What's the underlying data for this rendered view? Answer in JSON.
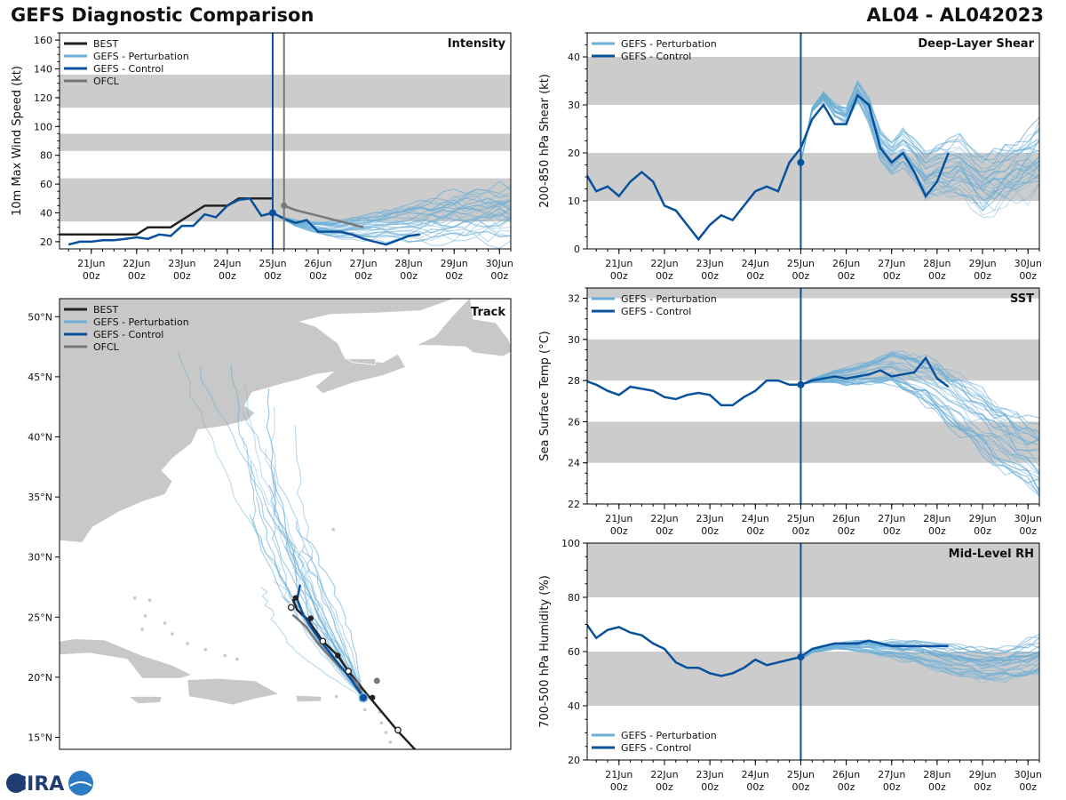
{
  "header": {
    "title": "GEFS Diagnostic Comparison",
    "storm_id": "AL04 - AL042023"
  },
  "logo": {
    "text": "CIRA"
  },
  "colors": {
    "best": "#222222",
    "perturbation": "#6baed6",
    "control": "#08519c",
    "ofcl": "#777777",
    "band": "#cccccc",
    "land": "#c8c8c8"
  },
  "time_axis": {
    "ticks": [
      {
        "day": 21,
        "label": "21Jun",
        "sub": "00z"
      },
      {
        "day": 22,
        "label": "22Jun",
        "sub": "00z"
      },
      {
        "day": 23,
        "label": "23Jun",
        "sub": "00z"
      },
      {
        "day": 24,
        "label": "24Jun",
        "sub": "00z"
      },
      {
        "day": 25,
        "label": "25Jun",
        "sub": "00z"
      },
      {
        "day": 26,
        "label": "26Jun",
        "sub": "00z"
      },
      {
        "day": 27,
        "label": "27Jun",
        "sub": "00z"
      },
      {
        "day": 28,
        "label": "28Jun",
        "sub": "00z"
      },
      {
        "day": 29,
        "label": "29Jun",
        "sub": "00z"
      },
      {
        "day": 30,
        "label": "30Jun",
        "sub": "00z"
      }
    ],
    "xlim": [
      20.3,
      30.25
    ],
    "init_day": 25.0
  },
  "chart_data": [
    {
      "id": "intensity",
      "type": "line",
      "title": "Intensity",
      "ylabel": "10m Max Wind Speed (kt)",
      "ylim": [
        15,
        165
      ],
      "yticks": [
        20,
        40,
        60,
        80,
        100,
        120,
        140,
        160
      ],
      "bands": [
        [
          34,
          64
        ],
        [
          83,
          95
        ],
        [
          113,
          136
        ]
      ],
      "legend": [
        "BEST",
        "GEFS - Perturbation",
        "GEFS - Control",
        "OFCL"
      ],
      "legend_types": [
        "best",
        "perturbation",
        "control",
        "ofcl"
      ],
      "vlines": [
        {
          "day": 25.0,
          "type": "control"
        },
        {
          "day": 25.25,
          "type": "ofcl"
        }
      ],
      "best": {
        "x": [
          20.25,
          20.5,
          20.75,
          21.0,
          21.25,
          21.5,
          21.75,
          22.0,
          22.25,
          22.5,
          22.75,
          23.0,
          23.25,
          23.5,
          23.75,
          24.0,
          24.25,
          24.5,
          24.75,
          25.0
        ],
        "y": [
          25,
          25,
          25,
          25,
          25,
          25,
          25,
          25,
          30,
          30,
          30,
          35,
          40,
          45,
          45,
          45,
          50,
          50,
          50,
          50
        ]
      },
      "control": {
        "x": [
          20.5,
          20.75,
          21.0,
          21.25,
          21.5,
          21.75,
          22.0,
          22.25,
          22.5,
          22.75,
          23.0,
          23.25,
          23.5,
          23.75,
          24.0,
          24.25,
          24.5,
          24.75,
          25.0,
          25.25,
          25.5,
          25.75,
          26.0,
          26.25,
          26.5,
          26.75,
          27.0,
          27.25,
          27.5,
          27.75,
          28.0,
          28.25
        ],
        "y": [
          18,
          20,
          20,
          21,
          21,
          22,
          23,
          22,
          25,
          24,
          31,
          31,
          39,
          37,
          45,
          49,
          50,
          38,
          40,
          36,
          33,
          35,
          27,
          27,
          27,
          25,
          22,
          20,
          18,
          21,
          24,
          25
        ]
      },
      "ofcl": {
        "x": [
          25.25,
          25.5,
          26.0,
          26.5,
          27.0
        ],
        "y": [
          45,
          42,
          38,
          34,
          30
        ]
      },
      "perturbation_base": {
        "x": [
          25.0,
          25.25,
          25.5,
          25.75,
          26.0,
          26.25,
          26.5,
          26.75,
          27.0,
          27.25,
          27.5,
          27.75,
          28.0,
          28.25,
          28.5,
          28.75,
          29.0,
          29.25,
          29.5,
          29.75,
          30.0,
          30.25
        ],
        "y": [
          40,
          36,
          33,
          31,
          30,
          29,
          29,
          30,
          30,
          31,
          32,
          33,
          34,
          35,
          36,
          37,
          38,
          39,
          40,
          40,
          40,
          40
        ]
      },
      "perturbation_spread": 16,
      "perturbation_count": 30,
      "markers": [
        {
          "x": 25.0,
          "y": 40,
          "type": "control"
        }
      ]
    },
    {
      "id": "shear",
      "type": "line",
      "title": "Deep-Layer Shear",
      "ylabel": "200-850 hPa Shear (kt)",
      "ylim": [
        0,
        45
      ],
      "yticks": [
        0,
        10,
        20,
        30,
        40
      ],
      "bands": [
        [
          10,
          20
        ],
        [
          30,
          40
        ]
      ],
      "legend": [
        "GEFS - Perturbation",
        "GEFS - Control"
      ],
      "legend_types": [
        "perturbation",
        "control"
      ],
      "vlines": [
        {
          "day": 25.0,
          "type": "control"
        }
      ],
      "control": {
        "x": [
          20.25,
          20.5,
          20.75,
          21.0,
          21.25,
          21.5,
          21.75,
          22.0,
          22.25,
          22.5,
          22.75,
          23.0,
          23.25,
          23.5,
          23.75,
          24.0,
          24.25,
          24.5,
          24.75,
          25.0,
          25.25,
          25.5,
          25.75,
          26.0,
          26.25,
          26.5,
          26.75,
          27.0,
          27.25,
          27.5,
          27.75,
          28.0,
          28.25
        ],
        "y": [
          16,
          12,
          13,
          11,
          14,
          16,
          14,
          9,
          8,
          5,
          2,
          5,
          7,
          6,
          9,
          12,
          13,
          12,
          18,
          21,
          27,
          30,
          26,
          26,
          32,
          30,
          21,
          18,
          20,
          16,
          11,
          14,
          20
        ]
      },
      "perturbation_base": {
        "x": [
          25.0,
          25.25,
          25.5,
          25.75,
          26.0,
          26.25,
          26.5,
          26.75,
          27.0,
          27.25,
          27.5,
          27.75,
          28.0,
          28.25,
          28.5,
          28.75,
          29.0,
          29.25,
          29.5,
          29.75,
          30.0,
          30.25
        ],
        "y": [
          18,
          29,
          32,
          29,
          28,
          33,
          29,
          22,
          19,
          21,
          19,
          16,
          17,
          17,
          18,
          16,
          14,
          15,
          16,
          17,
          19,
          20
        ]
      },
      "perturbation_spread": 8,
      "perturbation_count": 30,
      "markers": [
        {
          "x": 25.0,
          "y": 18,
          "type": "control"
        }
      ]
    },
    {
      "id": "sst",
      "type": "line",
      "title": "SST",
      "ylabel": "Sea Surface Temp (°C)",
      "ylim": [
        22,
        32.5
      ],
      "yticks": [
        22,
        24,
        26,
        28,
        30,
        32
      ],
      "bands": [
        [
          24,
          26
        ],
        [
          28,
          30
        ],
        [
          32,
          32.5
        ]
      ],
      "legend": [
        "GEFS - Perturbation",
        "GEFS - Control"
      ],
      "legend_types": [
        "perturbation",
        "control"
      ],
      "vlines": [
        {
          "day": 25.0,
          "type": "control"
        }
      ],
      "control": {
        "x": [
          20.25,
          20.5,
          20.75,
          21.0,
          21.25,
          21.5,
          21.75,
          22.0,
          22.25,
          22.5,
          22.75,
          23.0,
          23.25,
          23.5,
          23.75,
          24.0,
          24.25,
          24.5,
          24.75,
          25.0,
          25.25,
          25.5,
          25.75,
          26.0,
          26.25,
          26.5,
          26.75,
          27.0,
          27.25,
          27.5,
          27.75,
          28.0,
          28.25
        ],
        "y": [
          28.0,
          27.8,
          27.5,
          27.3,
          27.7,
          27.6,
          27.5,
          27.2,
          27.1,
          27.3,
          27.4,
          27.3,
          26.8,
          26.8,
          27.2,
          27.5,
          28.0,
          28.0,
          27.8,
          27.8,
          28.0,
          28.1,
          28.2,
          28.1,
          28.2,
          28.3,
          28.5,
          28.2,
          28.3,
          28.4,
          29.1,
          28.1,
          27.7
        ]
      },
      "perturbation_base": {
        "x": [
          25.0,
          25.25,
          25.5,
          25.75,
          26.0,
          26.25,
          26.5,
          26.75,
          27.0,
          27.25,
          27.5,
          27.75,
          28.0,
          28.25,
          28.5,
          28.75,
          29.0,
          29.25,
          29.5,
          29.75,
          30.0,
          30.25
        ],
        "y": [
          27.8,
          28.0,
          28.1,
          28.2,
          28.2,
          28.3,
          28.4,
          28.5,
          28.7,
          28.4,
          28.2,
          28.0,
          27.6,
          27.2,
          26.8,
          26.4,
          26.0,
          25.6,
          25.2,
          24.8,
          24.5,
          24.2
        ]
      },
      "perturbation_spread": 1.5,
      "perturbation_count": 30,
      "markers": [
        {
          "x": 25.0,
          "y": 27.8,
          "type": "control"
        }
      ]
    },
    {
      "id": "rh",
      "type": "line",
      "title": "Mid-Level RH",
      "ylabel": "700-500 hPa Humidity (%)",
      "ylim": [
        20,
        100
      ],
      "yticks": [
        20,
        40,
        60,
        80,
        100
      ],
      "bands": [
        [
          40,
          60
        ],
        [
          80,
          100
        ]
      ],
      "legend": [
        "GEFS - Perturbation",
        "GEFS - Control"
      ],
      "legend_types": [
        "perturbation",
        "control"
      ],
      "legend_pos": "bottom-left",
      "vlines": [
        {
          "day": 25.0,
          "type": "control"
        }
      ],
      "control": {
        "x": [
          20.25,
          20.5,
          20.75,
          21.0,
          21.25,
          21.5,
          21.75,
          22.0,
          22.25,
          22.5,
          22.75,
          23.0,
          23.25,
          23.5,
          23.75,
          24.0,
          24.25,
          24.5,
          24.75,
          25.0,
          25.25,
          25.5,
          25.75,
          26.0,
          26.25,
          26.5,
          26.75,
          27.0,
          27.25,
          27.5,
          27.75,
          28.0,
          28.25
        ],
        "y": [
          71,
          65,
          68,
          69,
          67,
          66,
          63,
          61,
          56,
          54,
          54,
          52,
          51,
          52,
          54,
          57,
          55,
          56,
          57,
          58,
          61,
          62,
          63,
          63,
          63,
          64,
          63,
          62,
          62,
          62,
          62,
          62,
          62
        ]
      },
      "perturbation_base": {
        "x": [
          25.0,
          25.25,
          25.5,
          25.75,
          26.0,
          26.25,
          26.5,
          26.75,
          27.0,
          27.25,
          27.5,
          27.75,
          28.0,
          28.25,
          28.5,
          28.75,
          29.0,
          29.25,
          29.5,
          29.75,
          30.0,
          30.25
        ],
        "y": [
          57,
          60,
          61,
          62,
          62,
          62,
          62,
          61,
          61,
          60,
          60,
          59,
          58,
          57,
          56,
          56,
          55,
          55,
          55,
          56,
          57,
          58
        ]
      },
      "perturbation_spread": 6,
      "perturbation_count": 30,
      "markers": [
        {
          "x": 25.0,
          "y": 58,
          "type": "control"
        }
      ]
    },
    {
      "id": "track",
      "type": "scatter",
      "title": "Track",
      "lon_range": [
        -83,
        -53
      ],
      "lat_range": [
        14,
        51.5
      ],
      "yticks": [
        15,
        20,
        25,
        30,
        35,
        40,
        45,
        50
      ],
      "ytick_labels": [
        "15°N",
        "20°N",
        "25°N",
        "30°N",
        "35°N",
        "40°N",
        "45°N",
        "50°N"
      ],
      "legend": [
        "BEST",
        "GEFS - Perturbation",
        "GEFS - Control",
        "OFCL"
      ],
      "legend_types": [
        "best",
        "perturbation",
        "control",
        "ofcl"
      ],
      "best": {
        "lon": [
          -59.0,
          -60.5,
          -61.5,
          -62.5,
          -63.8,
          -64.5,
          -65.5,
          -66.5,
          -67.2,
          -67.5
        ],
        "lat": [
          13.5,
          15.5,
          17.0,
          18.5,
          20.5,
          21.8,
          23.0,
          24.8,
          25.6,
          26.5
        ]
      },
      "best_open": [
        [
          -60.5,
          15.6
        ],
        [
          -63.8,
          20.5
        ],
        [
          -65.5,
          23.0
        ],
        [
          -67.6,
          25.8
        ]
      ],
      "best_filled": [
        [
          -62.2,
          18.3
        ],
        [
          -64.5,
          21.8
        ],
        [
          -66.3,
          24.9
        ],
        [
          -67.3,
          26.6
        ]
      ],
      "control": {
        "lon": [
          -62.8,
          -63.6,
          -64.5,
          -65.4,
          -66.2,
          -66.8,
          -67.2,
          -67.0
        ],
        "lat": [
          18.3,
          19.8,
          21.2,
          22.6,
          24.0,
          25.2,
          26.5,
          27.7
        ]
      },
      "ofcl": {
        "lon": [
          -62.8,
          -63.2,
          -64.5,
          -65.8,
          -66.6,
          -67.5
        ],
        "lat": [
          18.3,
          19.5,
          21.0,
          22.8,
          24.2,
          25.2
        ]
      },
      "perturbation_count": 28,
      "perturbation_end_lat": [
        44,
        47,
        42.5,
        39,
        36,
        33,
        31.3,
        29.5,
        27.5,
        30.5,
        32.5,
        38,
        41,
        44.3,
        45.8,
        35,
        29,
        26.7,
        28,
        34,
        37,
        42,
        46,
        31,
        27,
        25.5,
        33.5,
        40
      ]
    }
  ]
}
